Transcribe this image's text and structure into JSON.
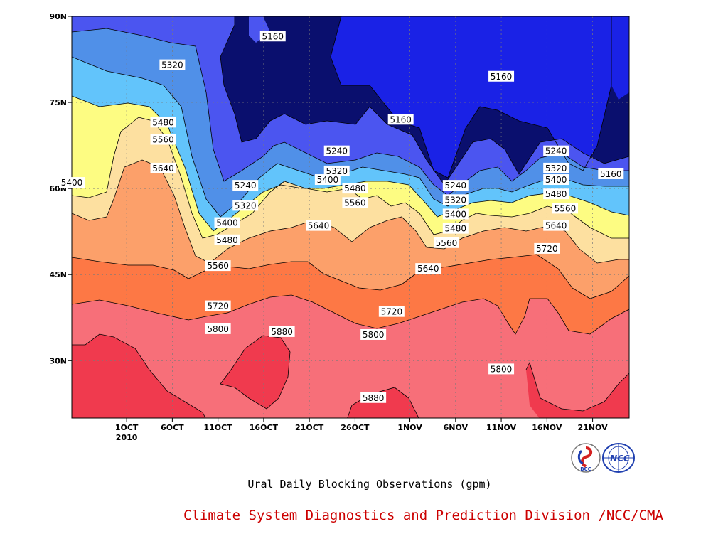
{
  "chart_data": {
    "type": "heatmap",
    "subtype": "filled-contour",
    "title": "Ural Daily Blocking Observations (gpm)",
    "x_tick_labels": [
      "1OCT",
      "6OCT",
      "11OCT",
      "16OCT",
      "21OCT",
      "26OCT",
      "1NOV",
      "6NOV",
      "11NOV",
      "16NOV",
      "21NOV"
    ],
    "x_tick_dates": [
      "2010-10-01",
      "2010-10-06",
      "2010-10-11",
      "2010-10-16",
      "2010-10-21",
      "2010-10-26",
      "2010-11-01",
      "2010-11-06",
      "2010-11-11",
      "2010-11-16",
      "2010-11-21"
    ],
    "x_sublabel": "2010",
    "x_range": [
      "2010-09-25",
      "2010-11-25"
    ],
    "y_tick_labels": [
      "30N",
      "45N",
      "60N",
      "75N",
      "90N"
    ],
    "y_tick_values": [
      30,
      45,
      60,
      75,
      90
    ],
    "y_range": [
      20,
      90
    ],
    "grid": true,
    "contour_levels": [
      5160,
      5240,
      5320,
      5400,
      5480,
      5560,
      5640,
      5720,
      5800,
      5880
    ],
    "band_colors": [
      "#0a0f6e",
      "#1a22e6",
      "#4b55f0",
      "#5090e8",
      "#62c4fb",
      "#fdfc82",
      "#fde0a0",
      "#fca06a",
      "#fd7845",
      "#f76f79",
      "#f03a4e"
    ],
    "contour_labels": [
      {
        "text": "5160",
        "date": "2010-10-17",
        "lat": 86.5
      },
      {
        "text": "5320",
        "date": "2010-10-06",
        "lat": 81.5
      },
      {
        "text": "5160",
        "date": "2010-11-11",
        "lat": 79.5
      },
      {
        "text": "5480",
        "date": "2010-10-05",
        "lat": 71.5
      },
      {
        "text": "5160",
        "date": "2010-10-31",
        "lat": 72
      },
      {
        "text": "5560",
        "date": "2010-10-05",
        "lat": 68.5
      },
      {
        "text": "5240",
        "date": "2010-10-24",
        "lat": 66.5
      },
      {
        "text": "5240",
        "date": "2010-11-17",
        "lat": 66.5
      },
      {
        "text": "5640",
        "date": "2010-10-05",
        "lat": 63.5
      },
      {
        "text": "5320",
        "date": "2010-10-24",
        "lat": 63
      },
      {
        "text": "5320",
        "date": "2010-11-17",
        "lat": 63.5
      },
      {
        "text": "5160",
        "date": "2010-11-23",
        "lat": 62.5
      },
      {
        "text": "5400",
        "date": "2010-09-25",
        "lat": 61
      },
      {
        "text": "5400",
        "date": "2010-10-23",
        "lat": 61.5
      },
      {
        "text": "5240",
        "date": "2010-10-14",
        "lat": 60.5
      },
      {
        "text": "5400",
        "date": "2010-11-17",
        "lat": 61.5
      },
      {
        "text": "5240",
        "date": "2010-11-06",
        "lat": 60.5
      },
      {
        "text": "5480",
        "date": "2010-10-26",
        "lat": 60
      },
      {
        "text": "5480",
        "date": "2010-11-17",
        "lat": 59
      },
      {
        "text": "5320",
        "date": "2010-11-06",
        "lat": 58
      },
      {
        "text": "5560",
        "date": "2010-10-26",
        "lat": 57.5
      },
      {
        "text": "5320",
        "date": "2010-10-14",
        "lat": 57
      },
      {
        "text": "5560",
        "date": "2010-11-18",
        "lat": 56.5
      },
      {
        "text": "5400",
        "date": "2010-11-06",
        "lat": 55.5
      },
      {
        "text": "5400",
        "date": "2010-10-12",
        "lat": 54
      },
      {
        "text": "5640",
        "date": "2010-10-22",
        "lat": 53.5
      },
      {
        "text": "5640",
        "date": "2010-11-17",
        "lat": 53.5
      },
      {
        "text": "5480",
        "date": "2010-11-06",
        "lat": 53
      },
      {
        "text": "5480",
        "date": "2010-10-12",
        "lat": 51
      },
      {
        "text": "5560",
        "date": "2010-11-05",
        "lat": 50.5
      },
      {
        "text": "5720",
        "date": "2010-11-16",
        "lat": 49.5
      },
      {
        "text": "5560",
        "date": "2010-10-11",
        "lat": 46.5
      },
      {
        "text": "5640",
        "date": "2010-11-03",
        "lat": 46
      },
      {
        "text": "5720",
        "date": "2010-10-11",
        "lat": 39.5
      },
      {
        "text": "5720",
        "date": "2010-10-30",
        "lat": 38.5
      },
      {
        "text": "5800",
        "date": "2010-10-11",
        "lat": 35.5
      },
      {
        "text": "5880",
        "date": "2010-10-18",
        "lat": 35
      },
      {
        "text": "5800",
        "date": "2010-10-28",
        "lat": 34.5
      },
      {
        "text": "5800",
        "date": "2010-11-11",
        "lat": 28.5
      },
      {
        "text": "5880",
        "date": "2010-10-28",
        "lat": 23.5
      }
    ]
  },
  "footer": {
    "subtitle": "Ural Daily Blocking Observations (gpm)",
    "credit": "Climate System Diagnostics and Prediction Division /NCC/CMA",
    "credit_color": "#cc0000",
    "logos": [
      "bcc-logo",
      "ncc-logo"
    ]
  }
}
